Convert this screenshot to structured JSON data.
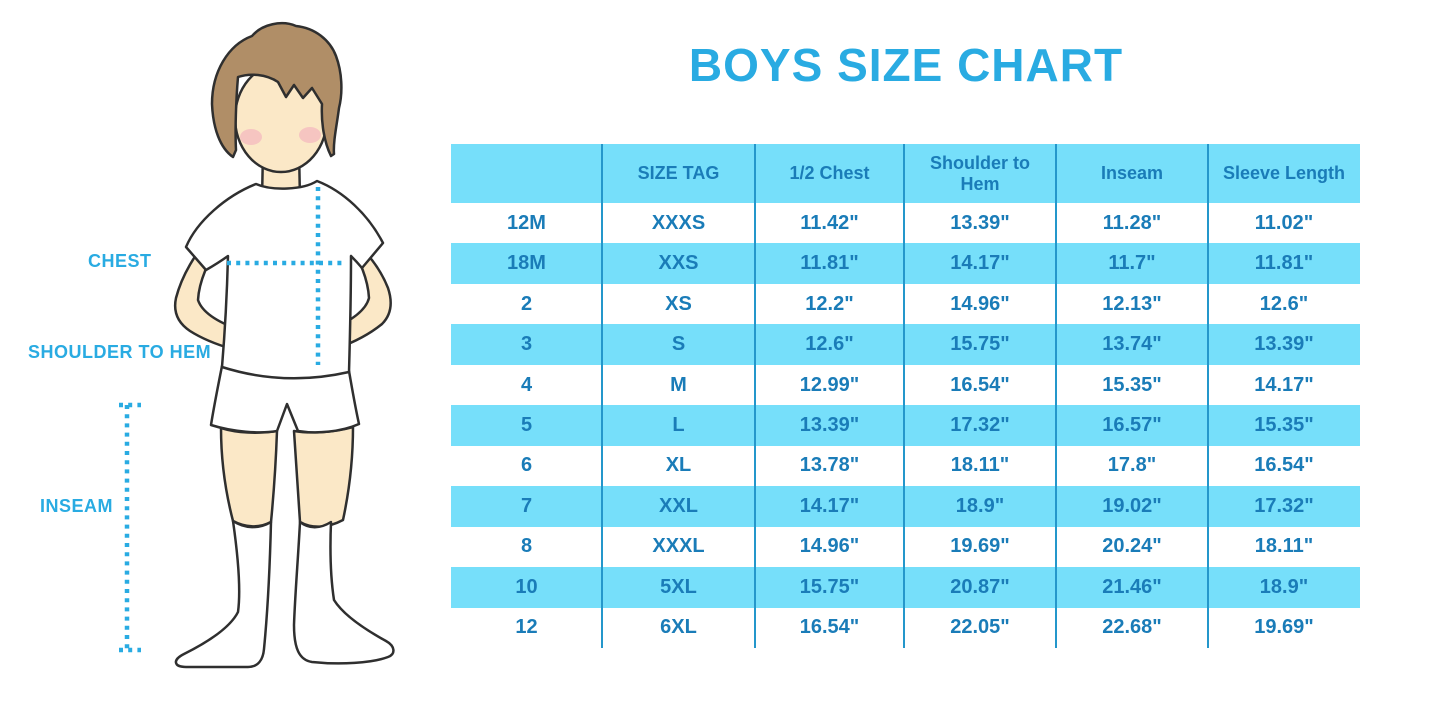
{
  "title": "BOYS SIZE CHART",
  "illustration": {
    "figure": "boy-mannequin-with-measurement-lines",
    "labels": {
      "chest": "CHEST",
      "shoulder_to_hem": "SHOULDER TO HEM",
      "inseam": "INSEAM"
    }
  },
  "chart_data": {
    "type": "table",
    "title": "BOYS SIZE CHART",
    "columns": [
      "",
      "SIZE TAG",
      "1/2 Chest",
      "Shoulder to Hem",
      "Inseam",
      "Sleeve Length"
    ],
    "rows": [
      [
        "12M",
        "XXXS",
        "11.42\"",
        "13.39\"",
        "11.28\"",
        "11.02\""
      ],
      [
        "18M",
        "XXS",
        "11.81\"",
        "14.17\"",
        "11.7\"",
        "11.81\""
      ],
      [
        "2",
        "XS",
        "12.2\"",
        "14.96\"",
        "12.13\"",
        "12.6\""
      ],
      [
        "3",
        "S",
        "12.6\"",
        "15.75\"",
        "13.74\"",
        "13.39\""
      ],
      [
        "4",
        "M",
        "12.99\"",
        "16.54\"",
        "15.35\"",
        "14.17\""
      ],
      [
        "5",
        "L",
        "13.39\"",
        "17.32\"",
        "16.57\"",
        "15.35\""
      ],
      [
        "6",
        "XL",
        "13.78\"",
        "18.11\"",
        "17.8\"",
        "16.54\""
      ],
      [
        "7",
        "XXL",
        "14.17\"",
        "18.9\"",
        "19.02\"",
        "17.32\""
      ],
      [
        "8",
        "XXXL",
        "14.96\"",
        "19.69\"",
        "20.24\"",
        "18.11\""
      ],
      [
        "10",
        "5XL",
        "15.75\"",
        "20.87\"",
        "21.46\"",
        "18.9\""
      ],
      [
        "12",
        "6XL",
        "16.54\"",
        "22.05\"",
        "22.68\"",
        "19.69\""
      ]
    ],
    "units": "inches",
    "stripe_pattern": "header and alternating rows filled light blue",
    "legend_position": "none",
    "grid": "vertical column dividers only"
  },
  "colors": {
    "accent_blue": "#29ABE2",
    "table_fill": "#76DFFA",
    "table_text": "#1A7CB8",
    "column_divider": "#2497CB",
    "skin": "#FBE8C7",
    "hair": "#B08E67",
    "cheek": "#F2A8BC",
    "outline": "#2F2F2F",
    "background": "#FFFFFF"
  }
}
